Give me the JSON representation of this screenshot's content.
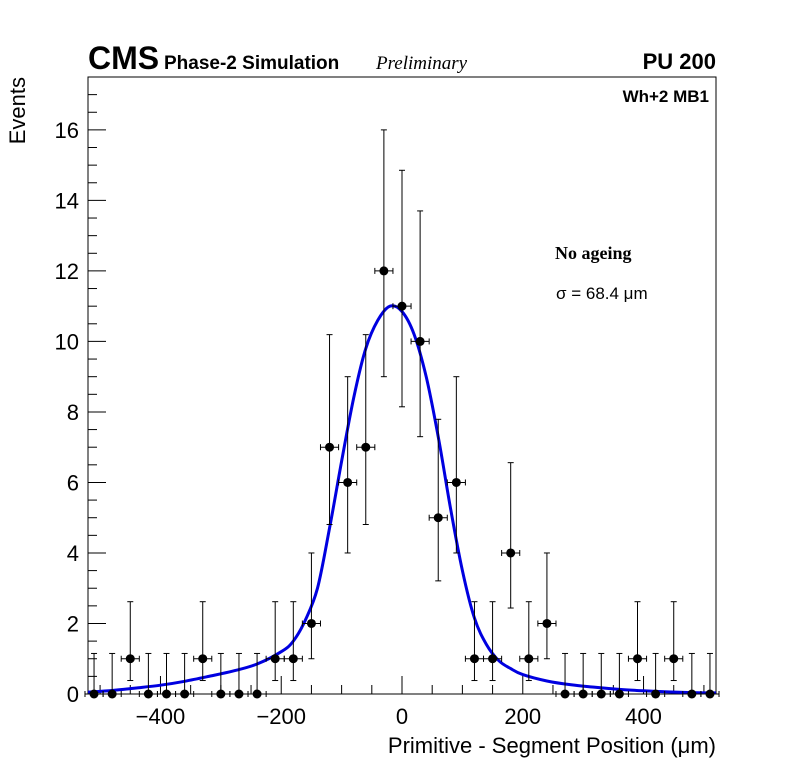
{
  "header": {
    "experiment": "CMS",
    "subtitle": "Phase-2 Simulation",
    "status": "Preliminary",
    "pileup": "PU 200"
  },
  "chart_data": {
    "type": "scatter",
    "title": "",
    "xlabel": "Primitive - Segment Position (μm)",
    "ylabel": "Events",
    "xlim": [
      -520,
      520
    ],
    "ylim": [
      0,
      17.5
    ],
    "xticks": [
      -400,
      -200,
      0,
      200,
      400
    ],
    "xtick_labels": [
      "−400",
      "−200",
      "0",
      "200",
      "400"
    ],
    "yticks": [
      0,
      2,
      4,
      6,
      8,
      10,
      12,
      14,
      16
    ],
    "bin_width": 30,
    "annotations": {
      "region": "Wh+2 MB1",
      "condition": "No ageing",
      "resolution": "σ = 68.4 μm"
    },
    "series": [
      {
        "name": "Data",
        "x": [
          -510,
          -480,
          -450,
          -420,
          -390,
          -360,
          -330,
          -300,
          -270,
          -240,
          -210,
          -180,
          -150,
          -120,
          -90,
          -60,
          -30,
          0,
          30,
          60,
          90,
          120,
          150,
          180,
          210,
          240,
          270,
          300,
          330,
          360,
          390,
          420,
          450,
          480,
          510
        ],
        "values": [
          0,
          0,
          1,
          0,
          0,
          0,
          1,
          0,
          0,
          0,
          1,
          1,
          2,
          7,
          6,
          7,
          12,
          11,
          10,
          5,
          6,
          1,
          1,
          4,
          1,
          2,
          0,
          0,
          0,
          0,
          1,
          0,
          1,
          0,
          0
        ]
      },
      {
        "name": "Fit",
        "color": "#0000e0",
        "x": [
          -520,
          -480,
          -440,
          -400,
          -360,
          -320,
          -280,
          -240,
          -200,
          -180,
          -160,
          -140,
          -120,
          -100,
          -80,
          -60,
          -40,
          -20,
          0,
          20,
          40,
          60,
          80,
          100,
          120,
          140,
          160,
          180,
          200,
          240,
          280,
          320,
          360,
          400,
          440,
          480,
          520
        ],
        "values": [
          0.05,
          0.1,
          0.17,
          0.25,
          0.36,
          0.5,
          0.65,
          0.85,
          1.2,
          1.5,
          2.1,
          3.0,
          4.7,
          6.6,
          8.4,
          9.8,
          10.6,
          11.0,
          10.85,
          10.2,
          9.0,
          7.3,
          5.3,
          3.5,
          2.15,
          1.4,
          0.95,
          0.72,
          0.55,
          0.37,
          0.26,
          0.19,
          0.13,
          0.09,
          0.06,
          0.04,
          0.03
        ]
      }
    ]
  }
}
